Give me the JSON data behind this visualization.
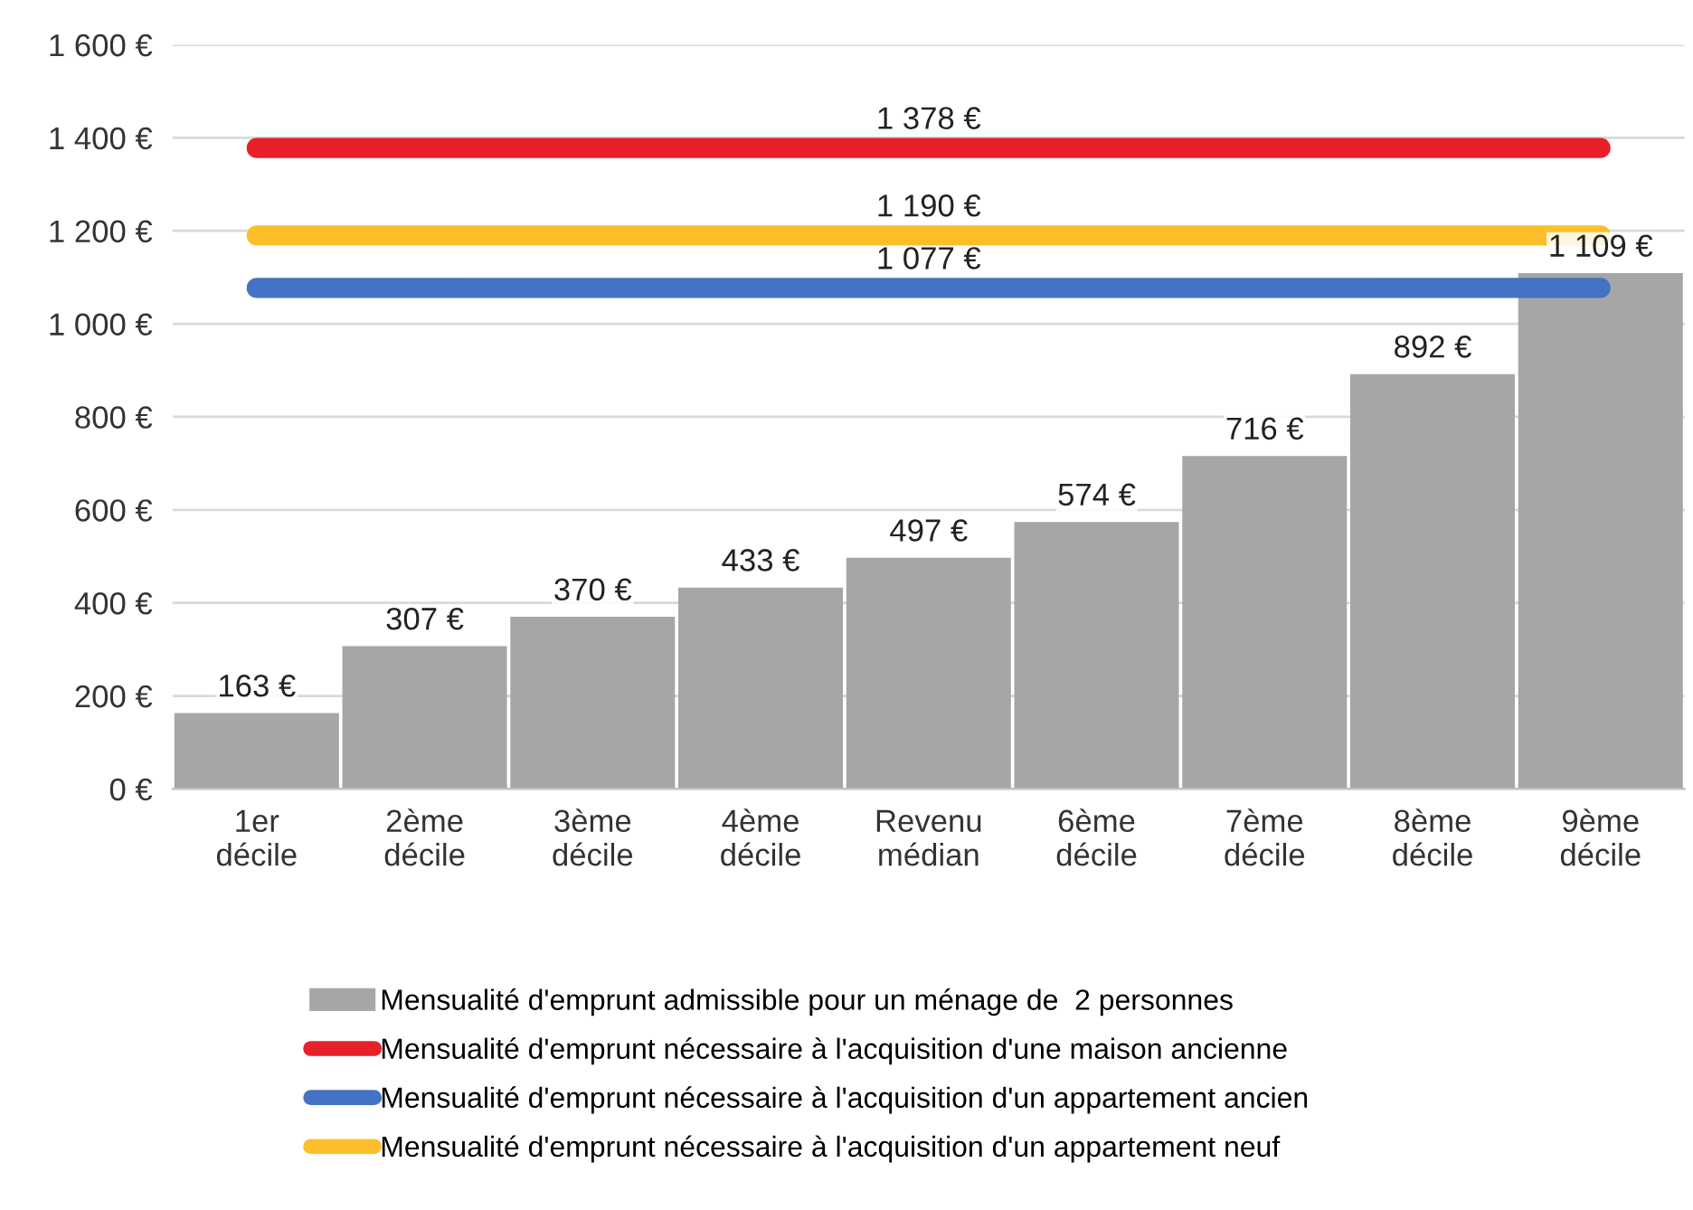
{
  "chart_data": {
    "type": "bar",
    "categories": [
      "1er\ndécile",
      "2ème\ndécile",
      "3ème\ndécile",
      "4ème\ndécile",
      "Revenu\nmédian",
      "6ème\ndécile",
      "7ème\ndécile",
      "8ème\ndécile",
      "9ème\ndécile"
    ],
    "series": [
      {
        "name": "Mensualité d'emprunt admissible pour un ménage de  2 personnes",
        "color": "#a6a6a6",
        "values": [
          163,
          307,
          370,
          433,
          497,
          574,
          716,
          892,
          1109
        ],
        "value_labels": [
          "163 €",
          "307 €",
          "370 €",
          "433 €",
          "497 €",
          "574 €",
          "716 €",
          "892 €",
          "1 109 €"
        ]
      },
      {
        "name": "Mensualité d'emprunt nécessaire à l'acquisition d'une maison ancienne",
        "type": "line",
        "color": "#e8202a",
        "values": [
          1378,
          1378,
          1378,
          1378,
          1378,
          1378,
          1378,
          1378,
          1378
        ],
        "value_labels": [
          null,
          null,
          null,
          null,
          "1 378 €",
          null,
          null,
          null,
          null
        ]
      },
      {
        "name": "Mensualité d'emprunt nécessaire à l'acquisition d'un appartement ancien",
        "type": "line",
        "color": "#4472c4",
        "values": [
          1077,
          1077,
          1077,
          1077,
          1077,
          1077,
          1077,
          1077,
          1077
        ],
        "value_labels": [
          null,
          null,
          null,
          null,
          "1 077 €",
          null,
          null,
          null,
          null
        ]
      },
      {
        "name": "Mensualité d'emprunt nécessaire à l'acquisition d'un appartement neuf",
        "type": "line",
        "color": "#fcbf2a",
        "values": [
          1190,
          1190,
          1190,
          1190,
          1190,
          1190,
          1190,
          1190,
          1190
        ],
        "value_labels": [
          null,
          null,
          null,
          null,
          "1 190 €",
          null,
          null,
          null,
          null
        ]
      }
    ],
    "ylim": [
      0,
      1600
    ],
    "yticks": [
      {
        "value": 0,
        "label": "0 €"
      },
      {
        "value": 200,
        "label": "200 €"
      },
      {
        "value": 400,
        "label": "400 €"
      },
      {
        "value": 600,
        "label": "600 €"
      },
      {
        "value": 800,
        "label": "800 €"
      },
      {
        "value": 1000,
        "label": "1 000 €"
      },
      {
        "value": 1200,
        "label": "1 200 €"
      },
      {
        "value": 1400,
        "label": "1 400 €"
      },
      {
        "value": 1600,
        "label": "1 600 €"
      }
    ],
    "grid": "y",
    "legend": "bottom",
    "line_style": "solid"
  }
}
